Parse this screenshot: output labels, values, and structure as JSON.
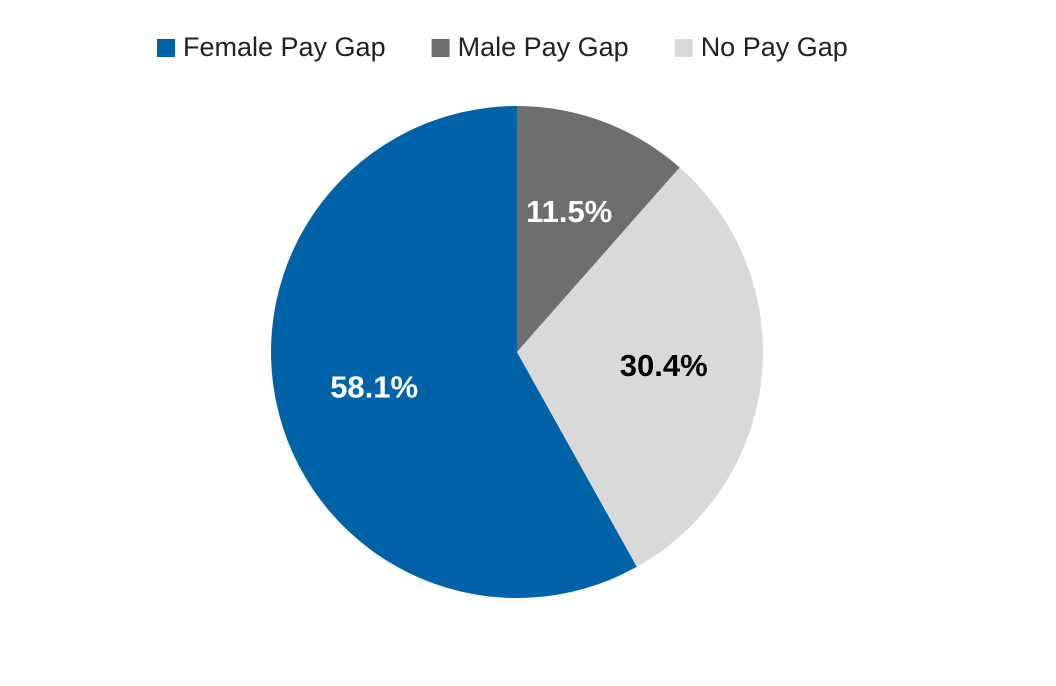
{
  "chart_data": {
    "type": "pie",
    "categories": [
      "Female Pay Gap",
      "Male Pay Gap",
      "No Pay Gap"
    ],
    "values": [
      58.1,
      11.5,
      30.4
    ],
    "value_labels": [
      "58.1%",
      "11.5%",
      "30.4%"
    ],
    "colors": [
      "#0063a7",
      "#6d6e70",
      "#d9d9d9"
    ],
    "legend": "top"
  }
}
